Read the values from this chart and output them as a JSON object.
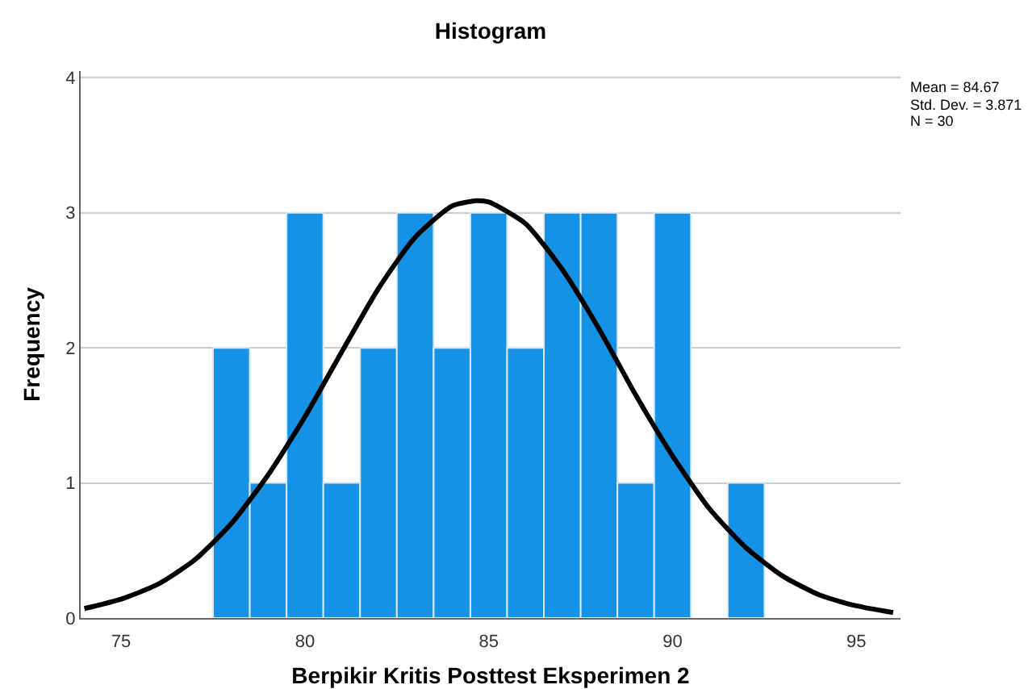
{
  "chart_data": {
    "type": "histogram",
    "title": "Histogram",
    "xlabel": "Berpikir Kritis Posttest Eksperimen 2",
    "ylabel": "Frequency",
    "bins": [
      77.5,
      78.5,
      79.5,
      80.5,
      81.5,
      82.5,
      83.5,
      84.5,
      85.5,
      86.5,
      87.5,
      88.5,
      89.5,
      90.5,
      91.5,
      92.5
    ],
    "series": [
      {
        "color": "#1591e6",
        "values": [
          2,
          1,
          3,
          1,
          2,
          3,
          2,
          3,
          2,
          3,
          3,
          1,
          3,
          0,
          1
        ]
      },
      {
        "type": "line",
        "color": "#000000",
        "x": [
          74,
          75,
          76,
          77,
          78,
          79,
          80,
          81,
          82,
          83,
          84,
          84.67,
          85,
          86,
          87,
          88,
          89,
          90,
          91,
          92,
          93,
          94,
          95,
          96
        ],
        "values": [
          0.07,
          0.14,
          0.25,
          0.43,
          0.7,
          1.06,
          1.49,
          1.97,
          2.44,
          2.82,
          3.05,
          3.09,
          3.08,
          2.92,
          2.58,
          2.14,
          1.65,
          1.2,
          0.81,
          0.52,
          0.31,
          0.17,
          0.09,
          0.04
        ]
      }
    ],
    "annotations": [
      "Mean = 84.67",
      "Std. Dev. = 3.871",
      "N = 30"
    ],
    "xlim": [
      73.9,
      96.2
    ],
    "xticks": [
      75,
      80,
      85,
      90,
      95
    ],
    "ylim": [
      0,
      4.05
    ],
    "yticks": [
      0,
      1,
      2,
      3,
      4
    ],
    "grid": "y",
    "marker": "none",
    "line_style": "solid"
  }
}
